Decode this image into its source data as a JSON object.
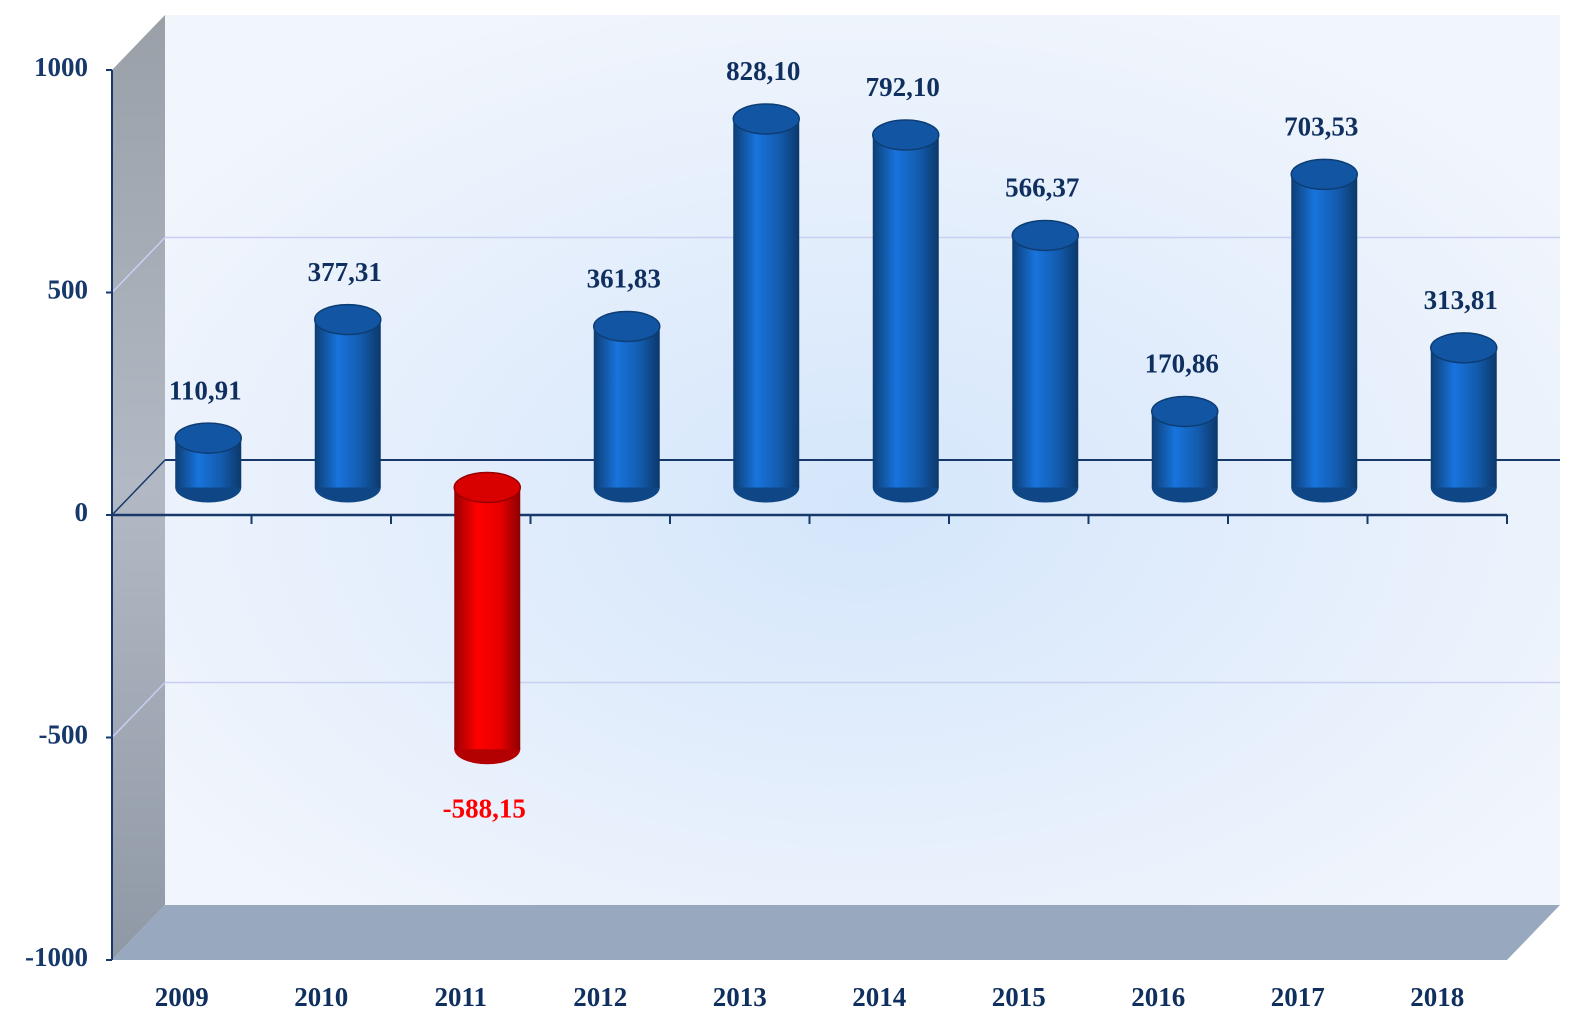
{
  "chart_data": {
    "type": "bar3d",
    "categories": [
      "2009",
      "2010",
      "2011",
      "2012",
      "2013",
      "2014",
      "2015",
      "2016",
      "2017",
      "2018"
    ],
    "values": [
      110.91,
      377.31,
      -588.15,
      361.83,
      828.1,
      792.1,
      566.37,
      170.86,
      703.53,
      313.81
    ],
    "value_labels": [
      "110,91",
      "377,31",
      "-588,15",
      "361,83",
      "828,10",
      "792,10",
      "566,37",
      "170,86",
      "703,53",
      "313,81"
    ],
    "colors": [
      "#1565c0",
      "#1565c0",
      "#ff0000",
      "#1565c0",
      "#1565c0",
      "#1565c0",
      "#1565c0",
      "#1565c0",
      "#1565c0",
      "#1565c0"
    ],
    "value_label_colors": [
      "#0f2f5f",
      "#0f2f5f",
      "#ff0000",
      "#0f2f5f",
      "#0f2f5f",
      "#0f2f5f",
      "#0f2f5f",
      "#0f2f5f",
      "#0f2f5f",
      "#0f2f5f"
    ],
    "ylim": [
      -1000,
      1000
    ],
    "yticks": [
      1000,
      500,
      0,
      -500,
      -1000
    ],
    "grid": true
  }
}
